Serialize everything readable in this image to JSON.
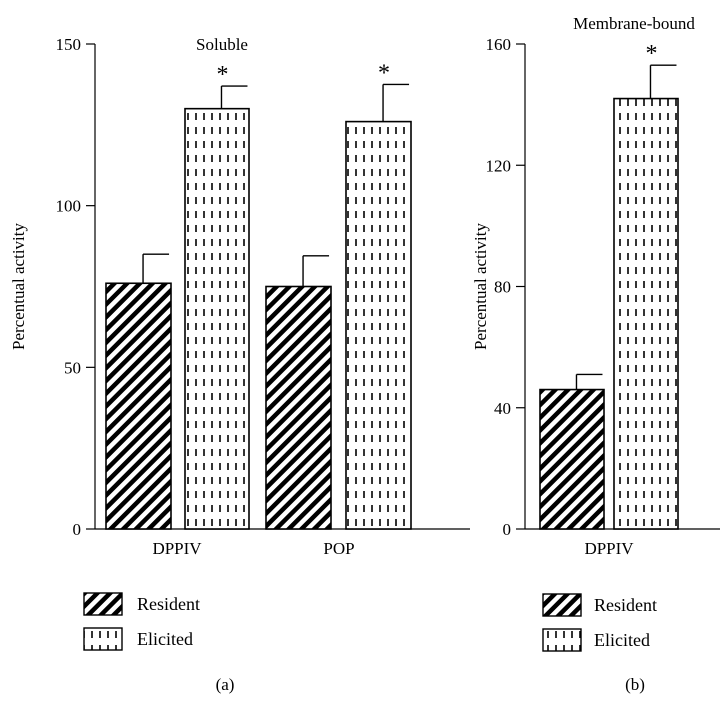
{
  "chart_data": [
    {
      "type": "bar",
      "title": "Soluble",
      "panel_label": "(a)",
      "ylabel": "Percentual activity",
      "xlabel": "",
      "ylim": [
        0,
        150
      ],
      "yticks": [
        0,
        50,
        100,
        150
      ],
      "categories": [
        "DPPIV",
        "POP"
      ],
      "series": [
        {
          "name": "Resident",
          "pattern": "hatch",
          "values": [
            76,
            75
          ],
          "errors": [
            9,
            9.5
          ],
          "significance": [
            "",
            ""
          ]
        },
        {
          "name": "Elicited",
          "pattern": "dash",
          "values": [
            130,
            126
          ],
          "errors": [
            7,
            11.5
          ],
          "significance": [
            "*",
            "*"
          ]
        }
      ],
      "legend": [
        "Resident",
        "Elicited"
      ],
      "legend_position": "bottom-left"
    },
    {
      "type": "bar",
      "title": "Membrane-bound",
      "panel_label": "(b)",
      "ylabel": "Percentual activity",
      "xlabel": "",
      "ylim": [
        0,
        160
      ],
      "yticks": [
        0,
        40,
        80,
        120,
        160
      ],
      "categories": [
        "DPPIV"
      ],
      "series": [
        {
          "name": "Resident",
          "pattern": "hatch",
          "values": [
            46
          ],
          "errors": [
            5
          ],
          "significance": [
            ""
          ]
        },
        {
          "name": "Elicited",
          "pattern": "dash",
          "values": [
            142
          ],
          "errors": [
            11
          ],
          "significance": [
            "*"
          ]
        }
      ],
      "legend": [
        "Resident",
        "Elicited"
      ],
      "legend_position": "bottom"
    }
  ]
}
